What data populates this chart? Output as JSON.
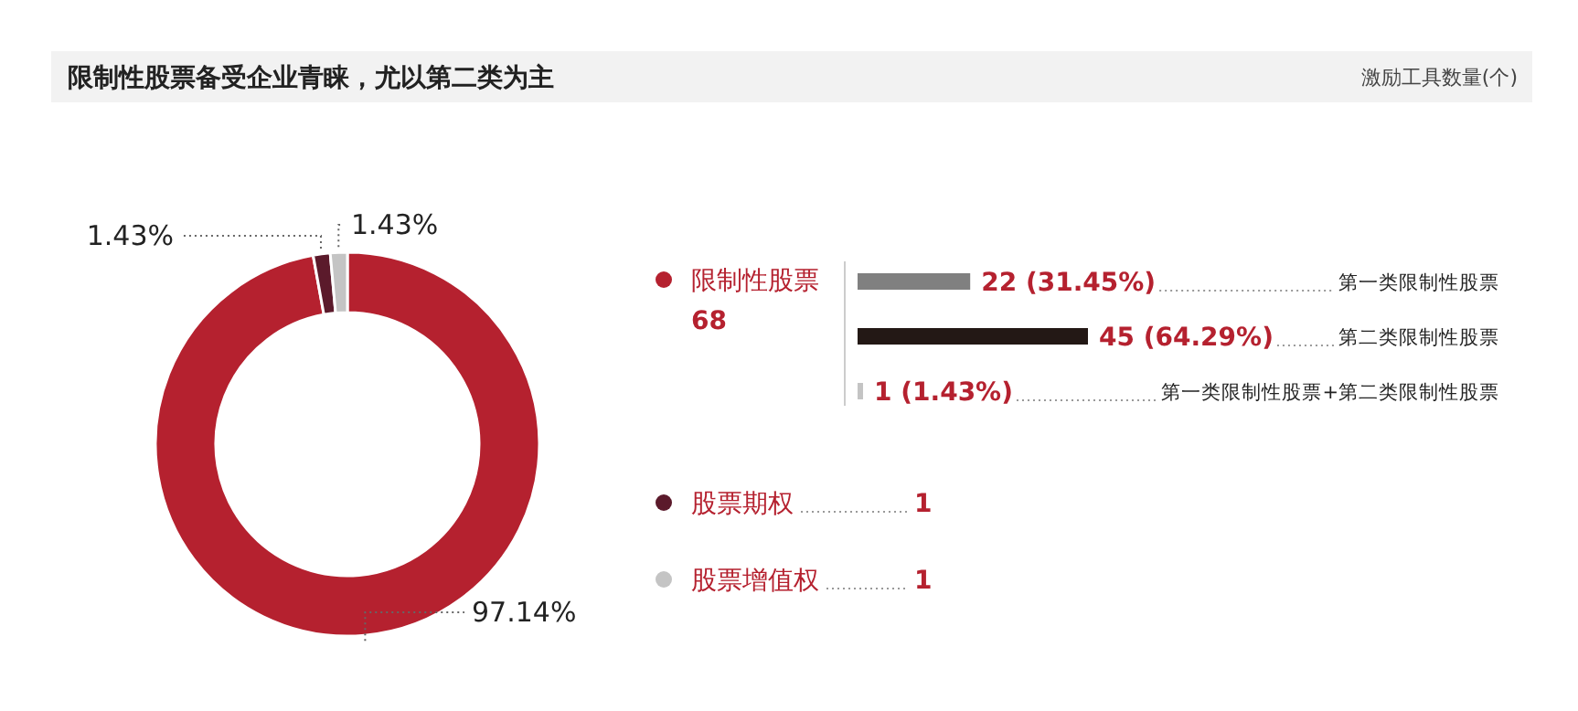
{
  "chart_data": [
    {
      "type": "donut",
      "title": "限制性股票备受企业青睐，尤以第二类为主",
      "categories": [
        "限制性股票",
        "股票期权",
        "股票增值权"
      ],
      "values": [
        97.14,
        1.43,
        1.43
      ],
      "colors": [
        "#b5212f",
        "#5b1a2b",
        "#c4c4c4"
      ],
      "value_labels": [
        "97.14%",
        "1.43%",
        "1.43%"
      ],
      "legend": "right",
      "annotations": [
        "68",
        "1",
        "1"
      ]
    },
    {
      "type": "bar",
      "orientation": "horizontal",
      "subtitle": "激励工具数量(个)",
      "categories": [
        "第一类限制性股票",
        "第二类限制性股票",
        "第一类限制性股票+第二类限制性股票"
      ],
      "values": [
        22,
        45,
        1
      ],
      "colors": [
        "#808080",
        "#231815",
        "#c4c4c4"
      ],
      "value_labels": [
        "22 (31.45%)",
        "45 (64.29%)",
        "1 (1.43%)"
      ]
    }
  ]
}
